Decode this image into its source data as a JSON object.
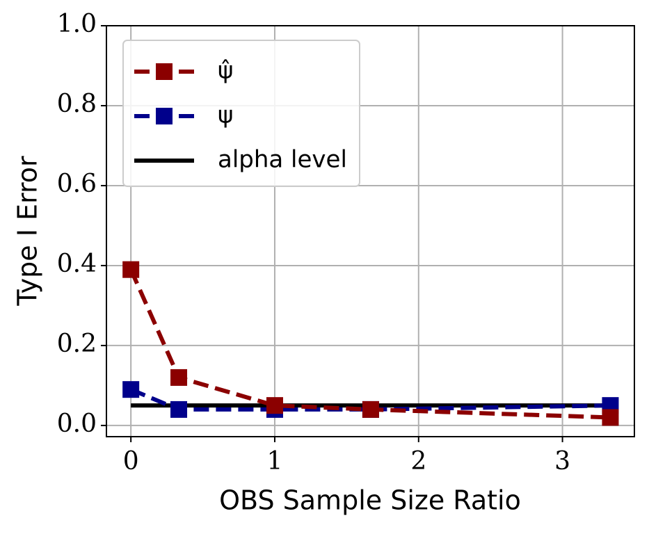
{
  "chart_data": {
    "type": "line",
    "xlabel": "OBS Sample Size Ratio",
    "ylabel": "Type I Error",
    "series": [
      {
        "name": "ψ̂",
        "color": "#8b0000",
        "linestyle": "dashed",
        "marker": "square",
        "x": [
          0,
          0.333,
          1,
          1.667,
          3.333
        ],
        "values": [
          0.39,
          0.12,
          0.05,
          0.04,
          0.02
        ]
      },
      {
        "name": "ψ",
        "color": "#00008b",
        "linestyle": "dashed",
        "marker": "square",
        "x": [
          0,
          0.333,
          1,
          1.667,
          3.333
        ],
        "values": [
          0.09,
          0.04,
          0.04,
          0.04,
          0.05
        ]
      },
      {
        "name": "alpha level",
        "color": "#000000",
        "linestyle": "solid",
        "marker": "none",
        "x": [
          0,
          3.333
        ],
        "values": [
          0.05,
          0.05
        ]
      }
    ],
    "xlim": [
      -0.17,
      3.5
    ],
    "ylim": [
      -0.028,
      1.0
    ],
    "xticks": [
      0,
      1,
      2,
      3
    ],
    "yticks": [
      {
        "value": 0,
        "label": "0.0"
      },
      {
        "value": 0.2,
        "label": "0.2"
      },
      {
        "value": 0.4,
        "label": "0.4"
      },
      {
        "value": 0.6,
        "label": "0.6"
      },
      {
        "value": 0.8,
        "label": "0.8"
      },
      {
        "value": 1.0,
        "label": "1.0"
      }
    ],
    "grid": true,
    "legend": "upper left"
  }
}
